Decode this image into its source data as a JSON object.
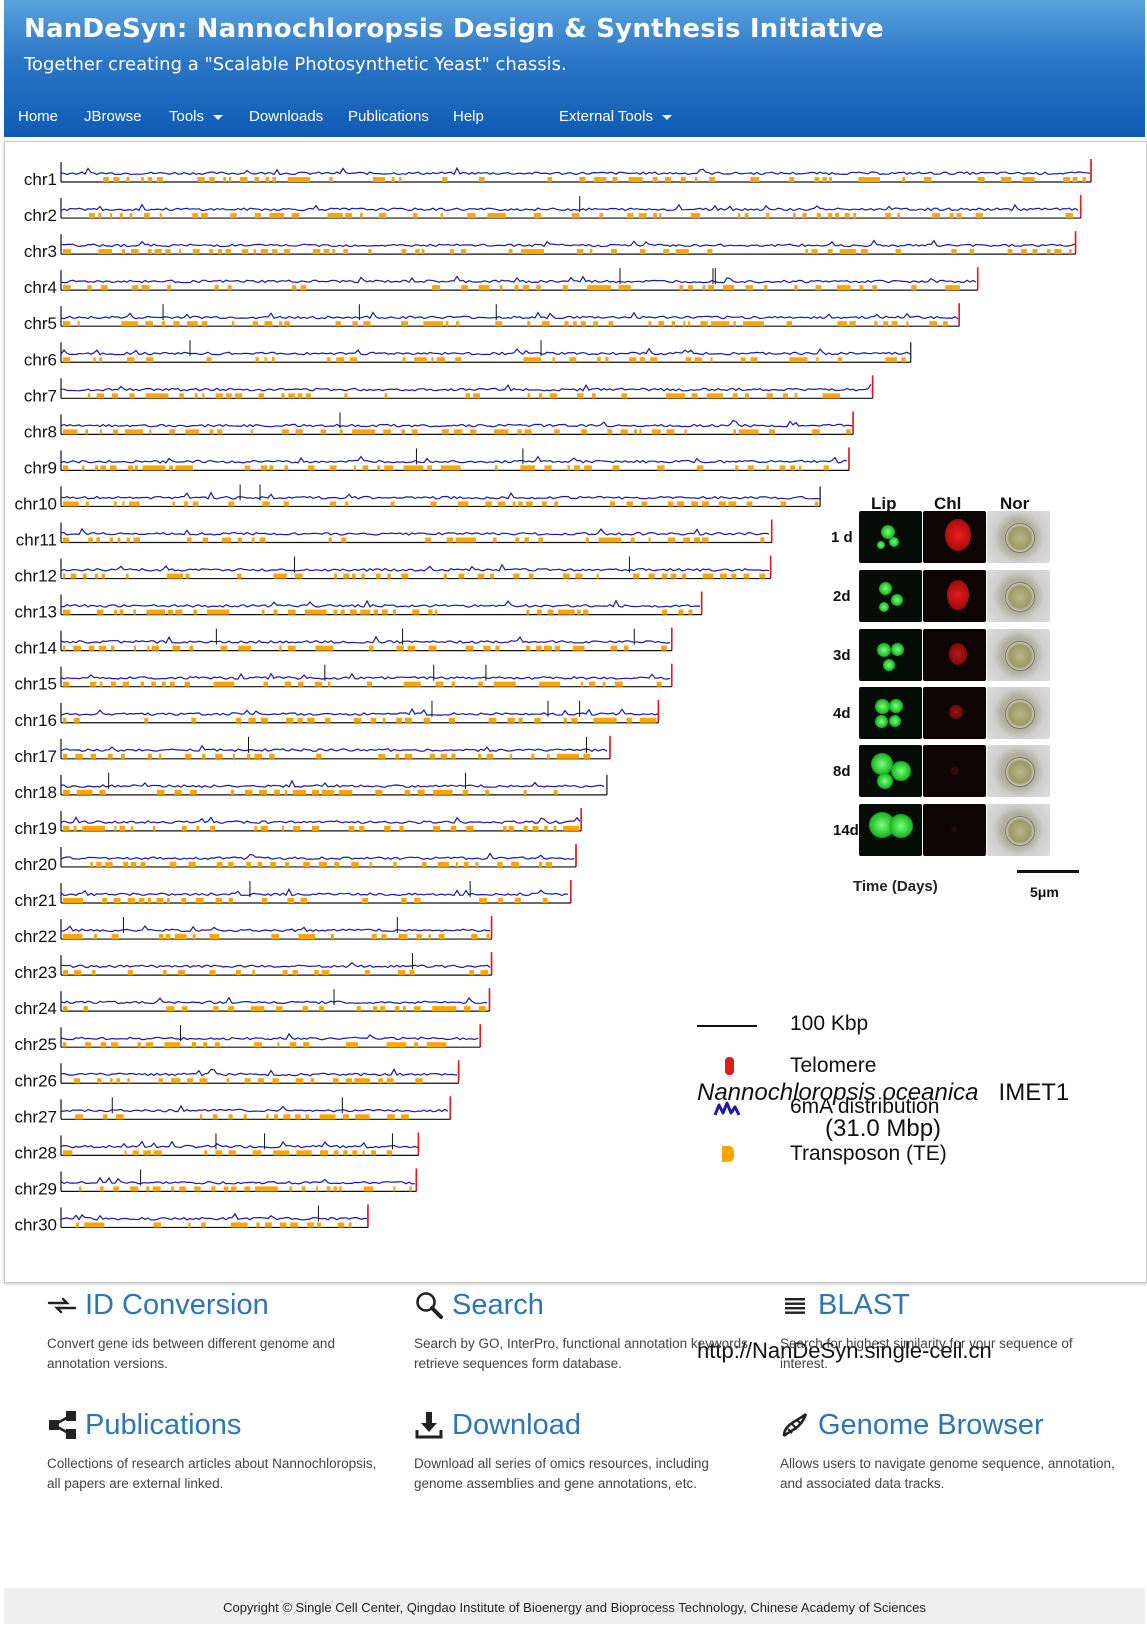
{
  "header": {
    "title": "NanDeSyn: Nannochloropsis Design & Synthesis Initiative",
    "subtitle": "Together creating a \"Scalable Photosynthetic Yeast\" chassis."
  },
  "nav": {
    "home": "Home",
    "jbrowse": "JBrowse",
    "tools": "Tools",
    "downloads": "Downloads",
    "publications": "Publications",
    "help": "Help",
    "external_tools": "External Tools"
  },
  "figure": {
    "chromosomes": [
      {
        "name": "chr1",
        "length": 1.0
      },
      {
        "name": "chr2",
        "length": 0.99
      },
      {
        "name": "chr3",
        "length": 0.985
      },
      {
        "name": "chr4",
        "length": 0.89
      },
      {
        "name": "chr5",
        "length": 0.872
      },
      {
        "name": "chr6",
        "length": 0.825
      },
      {
        "name": "chr7",
        "length": 0.788
      },
      {
        "name": "chr8",
        "length": 0.769
      },
      {
        "name": "chr9",
        "length": 0.765
      },
      {
        "name": "chr10",
        "length": 0.737
      },
      {
        "name": "chr11",
        "length": 0.69
      },
      {
        "name": "chr12",
        "length": 0.689
      },
      {
        "name": "chr13",
        "length": 0.622
      },
      {
        "name": "chr14",
        "length": 0.593
      },
      {
        "name": "chr15",
        "length": 0.593
      },
      {
        "name": "chr16",
        "length": 0.58
      },
      {
        "name": "chr17",
        "length": 0.533
      },
      {
        "name": "chr18",
        "length": 0.53
      },
      {
        "name": "chr19",
        "length": 0.505
      },
      {
        "name": "chr20",
        "length": 0.5
      },
      {
        "name": "chr21",
        "length": 0.495
      },
      {
        "name": "chr22",
        "length": 0.418
      },
      {
        "name": "chr23",
        "length": 0.418
      },
      {
        "name": "chr24",
        "length": 0.416
      },
      {
        "name": "chr25",
        "length": 0.407
      },
      {
        "name": "chr26",
        "length": 0.386
      },
      {
        "name": "chr27",
        "length": 0.378
      },
      {
        "name": "chr28",
        "length": 0.347
      },
      {
        "name": "chr29",
        "length": 0.345
      },
      {
        "name": "chr30",
        "length": 0.298
      }
    ],
    "microscopy": {
      "columns": [
        "Lip",
        "Chl",
        "Nor"
      ],
      "rows": [
        "1 d",
        "2d",
        "3d",
        "4d",
        "8d",
        "14d"
      ],
      "time_label": "Time (Days)",
      "scale_label": "5μm"
    },
    "species_name": "Nannochloropsis oceanica",
    "strain": "IMET1",
    "genome_size": "(31.0 Mbp)",
    "legend": [
      {
        "icon": "scale-bar-icon",
        "label": "100 Kbp"
      },
      {
        "icon": "telomere-icon",
        "label": "Telomere"
      },
      {
        "icon": "6ma-distribution-icon",
        "label": "6mA distribution"
      },
      {
        "icon": "transposon-icon",
        "label": "Transposon (TE)"
      }
    ],
    "url": "http://NanDeSyn.single-cell.cn",
    "colors": {
      "telomere": "#e31a1c",
      "six_ma": "#1a1aa6",
      "transposon": "#ffa500"
    }
  },
  "features": [
    {
      "icon": "id-conversion-icon",
      "title": "ID Conversion",
      "desc": "Convert gene ids between different genome and annotation versions."
    },
    {
      "icon": "search-icon",
      "title": "Search",
      "desc": "Search by GO, InterPro, functional annotation keywords, retrieve sequences form database."
    },
    {
      "icon": "blast-icon",
      "title": "BLAST",
      "desc": "Search for highest similarity for your sequence of interest."
    },
    {
      "icon": "share-icon",
      "title": "Publications",
      "desc": "Collections of research articles about Nannochloropsis, all papers are external linked."
    },
    {
      "icon": "download-icon",
      "title": "Download",
      "desc": "Download all series of omics resources, including genome assemblies and gene annotations, etc."
    },
    {
      "icon": "dna-icon",
      "title": "Genome Browser",
      "desc": "Allows users to navigate genome sequence, annotation, and associated data tracks."
    }
  ],
  "footer": {
    "copyright": "Copyright © Single Cell Center, Qingdao Institute of Bioenergy and Bioprocess Technology, Chinese Academy of Sciences"
  }
}
